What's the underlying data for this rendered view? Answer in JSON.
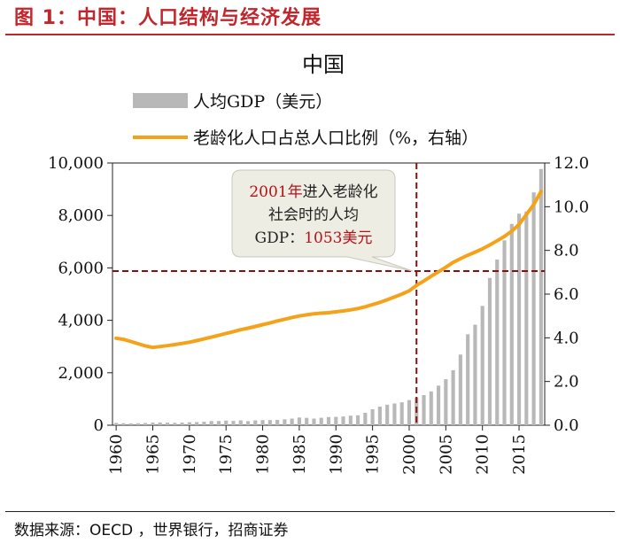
{
  "header": {
    "figure_title": "图 1：中国：人口结构与经济发展"
  },
  "footer": {
    "source": "数据来源：OECD ，世界银行，招商证券"
  },
  "chart_data": {
    "type": "bar+line",
    "title": "中国",
    "legend": {
      "bar": "人均GDP（美元）",
      "line": "老龄化人口占总人口比例（%，右轴）"
    },
    "x": [
      1960,
      1961,
      1962,
      1963,
      1964,
      1965,
      1966,
      1967,
      1968,
      1969,
      1970,
      1971,
      1972,
      1973,
      1974,
      1975,
      1976,
      1977,
      1978,
      1979,
      1980,
      1981,
      1982,
      1983,
      1984,
      1985,
      1986,
      1987,
      1988,
      1989,
      1990,
      1991,
      1992,
      1993,
      1994,
      1995,
      1996,
      1997,
      1998,
      1999,
      2000,
      2001,
      2002,
      2003,
      2004,
      2005,
      2006,
      2007,
      2008,
      2009,
      2010,
      2011,
      2012,
      2013,
      2014,
      2015,
      2016,
      2017,
      2018
    ],
    "x_ticks": [
      1960,
      1965,
      1970,
      1975,
      1980,
      1985,
      1990,
      1995,
      2000,
      2005,
      2010,
      2015
    ],
    "series": [
      {
        "name": "人均GDP（美元）",
        "type": "bar",
        "axis": "left",
        "color": "#b8b8b8",
        "values": [
          90,
          76,
          70,
          74,
          85,
          98,
          104,
          97,
          91,
          100,
          113,
          119,
          132,
          157,
          160,
          178,
          165,
          185,
          156,
          184,
          195,
          197,
          203,
          225,
          251,
          294,
          281,
          252,
          284,
          311,
          318,
          333,
          366,
          377,
          473,
          610,
          709,
          782,
          829,
          873,
          959,
          1053,
          1149,
          1289,
          1509,
          1753,
          2099,
          2694,
          3468,
          3832,
          4550,
          5618,
          6317,
          7051,
          7679,
          8067,
          8148,
          8879,
          9771
        ]
      },
      {
        "name": "老龄化人口占总人口比例（%，右轴）",
        "type": "line",
        "axis": "right",
        "color": "#f5a21b",
        "values": [
          3.98,
          3.93,
          3.83,
          3.73,
          3.63,
          3.56,
          3.6,
          3.64,
          3.69,
          3.74,
          3.8,
          3.87,
          3.95,
          4.03,
          4.11,
          4.2,
          4.28,
          4.37,
          4.44,
          4.52,
          4.6,
          4.68,
          4.77,
          4.85,
          4.93,
          5.0,
          5.05,
          5.1,
          5.13,
          5.15,
          5.19,
          5.23,
          5.28,
          5.34,
          5.42,
          5.52,
          5.62,
          5.74,
          5.87,
          6.0,
          6.15,
          6.4,
          6.6,
          6.82,
          7.02,
          7.23,
          7.45,
          7.62,
          7.78,
          7.92,
          8.07,
          8.25,
          8.44,
          8.64,
          8.88,
          9.19,
          9.64,
          10.1,
          10.7
        ]
      }
    ],
    "y_left": {
      "ticks": [
        "0",
        "2,000",
        "4,000",
        "6,000",
        "8,000",
        "10,000"
      ],
      "min": 0,
      "max": 10000
    },
    "y_right": {
      "ticks": [
        "0.0",
        "2.0",
        "4.0",
        "6.0",
        "8.0",
        "10.0",
        "12.0"
      ],
      "min": 0,
      "max": 12
    },
    "reference_lines": {
      "x": 2001,
      "y_left": 5880,
      "color": "#8b0d0d"
    },
    "annotation": {
      "line1_red": "2001年",
      "line1_rest": "进入老龄化",
      "line2": "社会时的人均",
      "line3_prefix": "GDP：",
      "line3_red": "1053美元"
    }
  }
}
